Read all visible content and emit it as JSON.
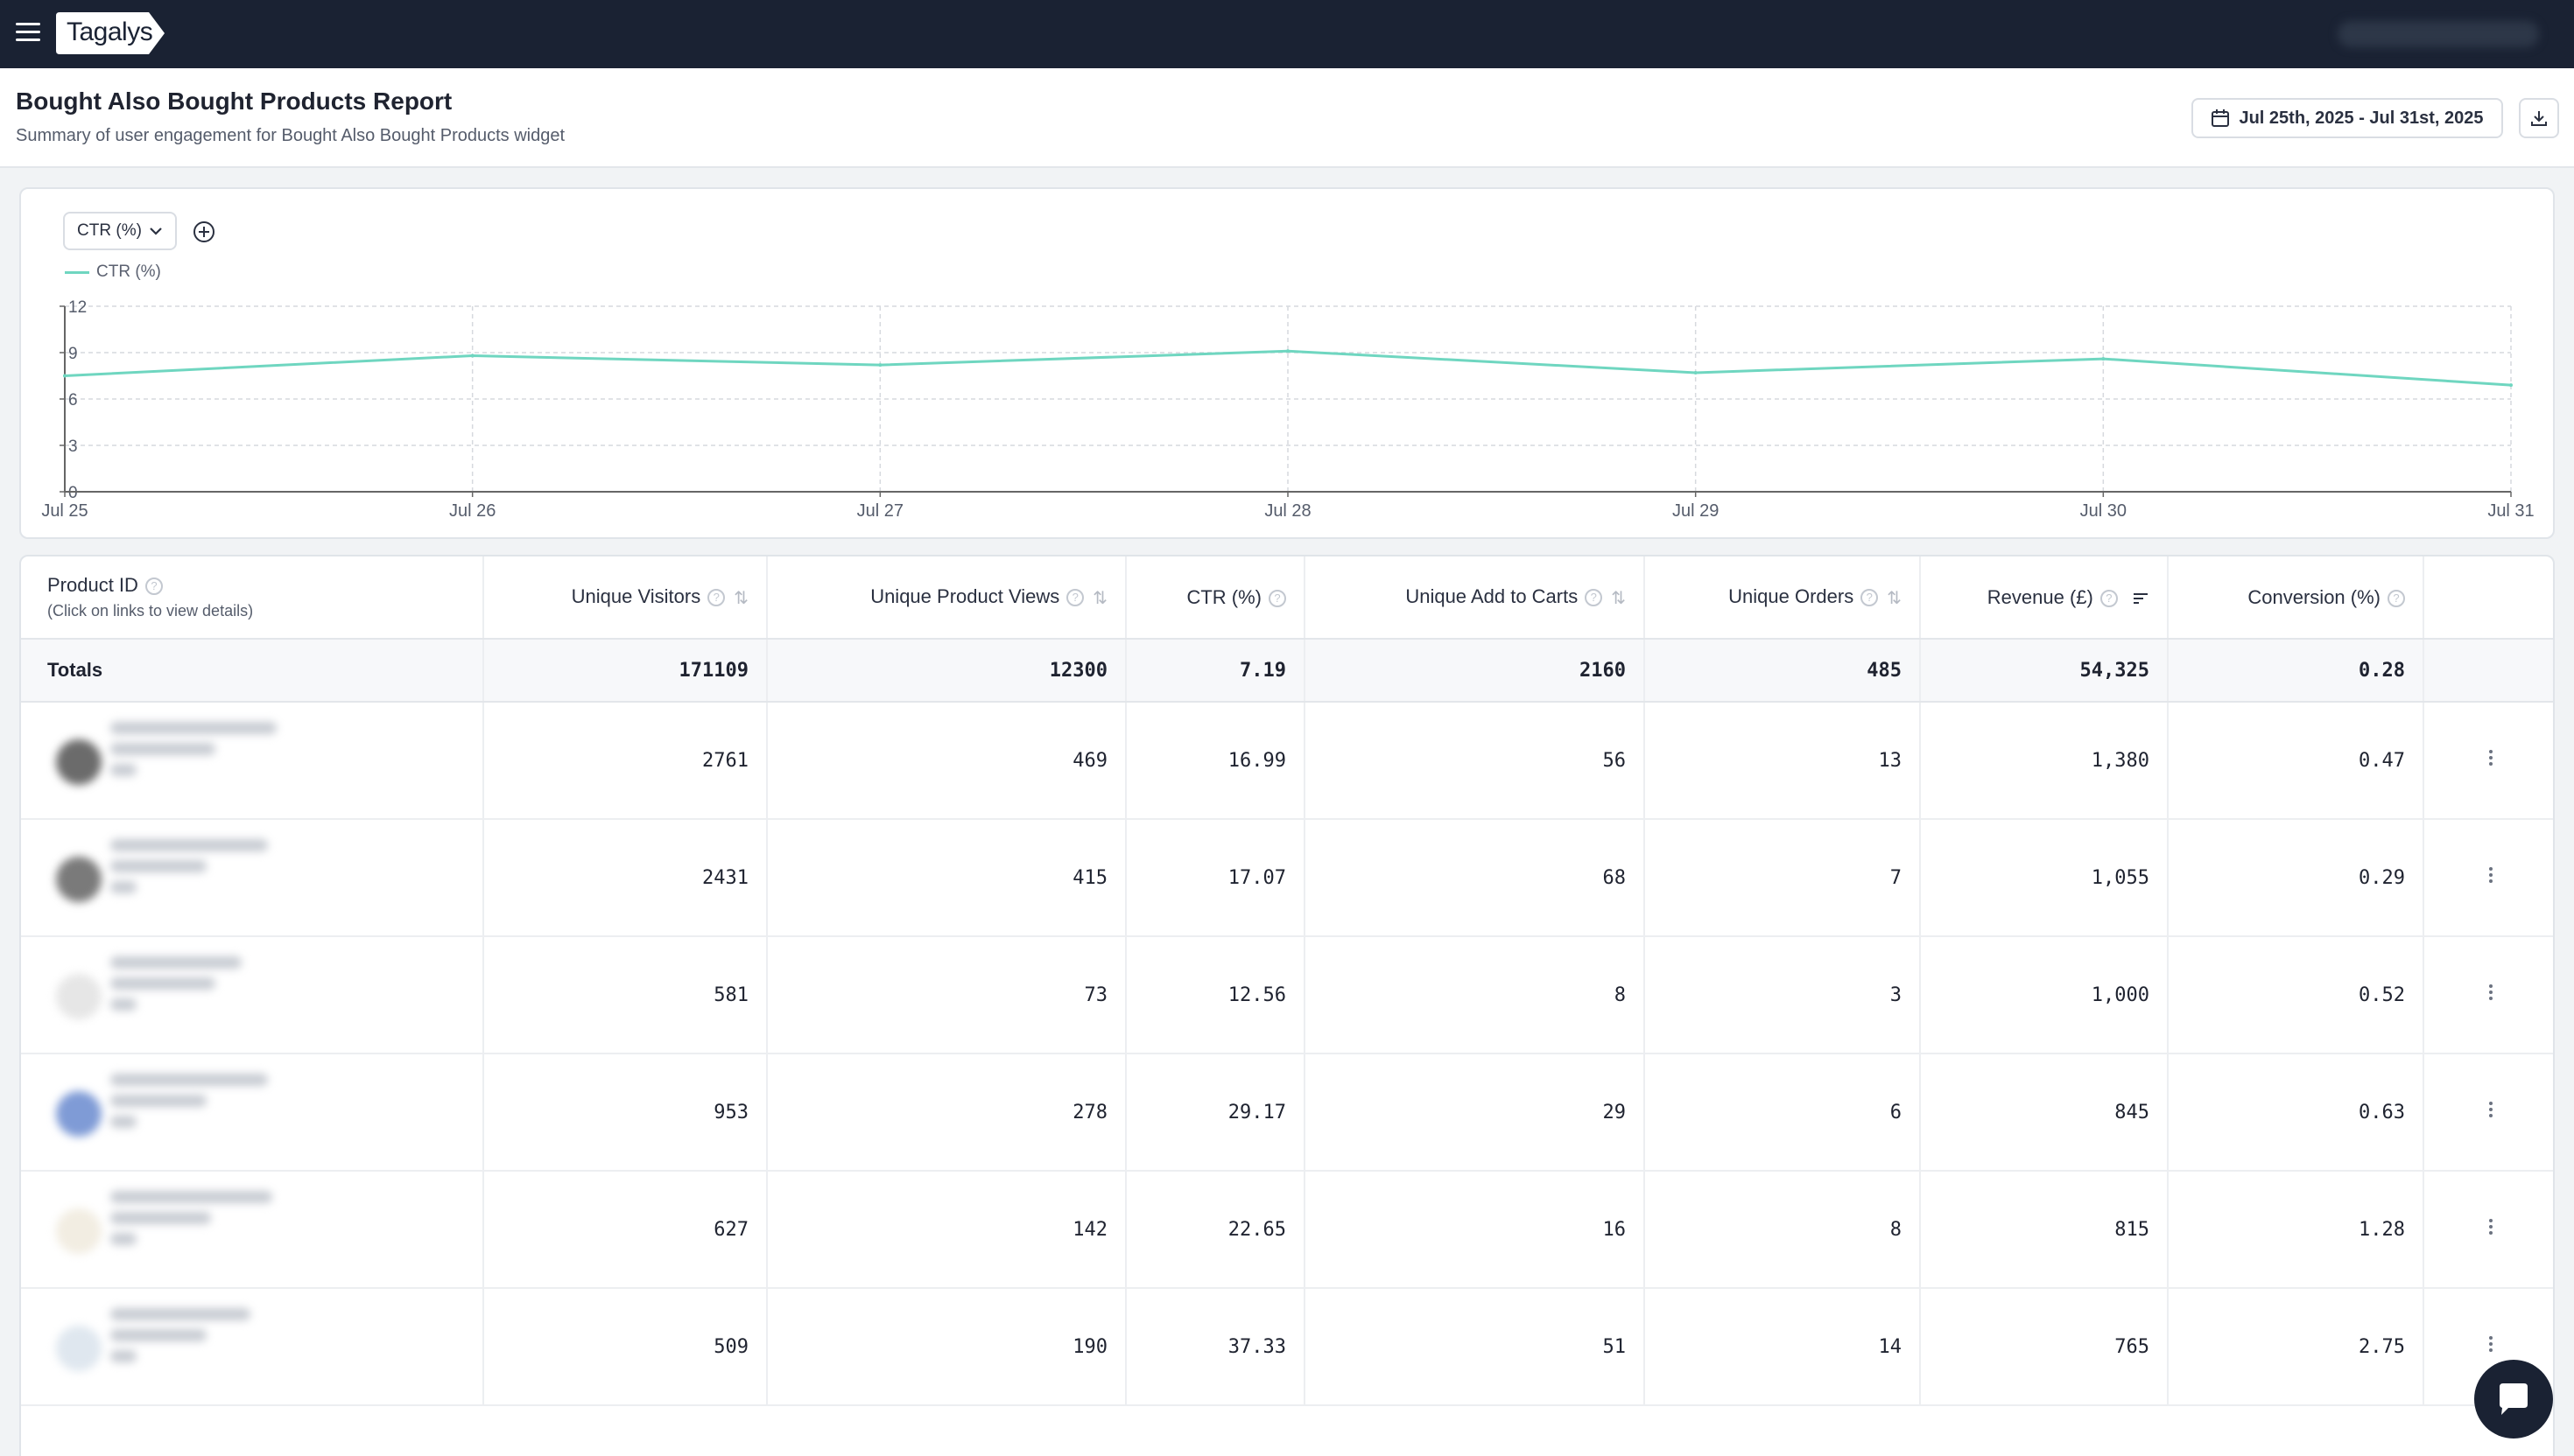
{
  "app": {
    "logo_text": "Tagalys"
  },
  "header": {
    "title": "Bought Also Bought Products Report",
    "subtitle": "Summary of user engagement for Bought Also Bought Products widget",
    "date_range": "Jul 25th, 2025 - Jul 31st, 2025"
  },
  "chart": {
    "metric_select": "CTR (%)",
    "legend_label": "CTR (%)"
  },
  "chart_data": {
    "type": "line",
    "x": [
      "Jul 25",
      "Jul 26",
      "Jul 27",
      "Jul 28",
      "Jul 29",
      "Jul 30",
      "Jul 31"
    ],
    "series": [
      {
        "name": "CTR (%)",
        "values": [
          7.5,
          8.8,
          8.2,
          9.1,
          7.7,
          8.6,
          6.9
        ],
        "color": "#6fd6c0"
      }
    ],
    "yticks": [
      0,
      3,
      6,
      9,
      12
    ],
    "ylim": [
      0,
      12
    ],
    "grid": true,
    "legend": "top-left"
  },
  "table": {
    "columns": [
      {
        "label": "Product ID",
        "sub": "(Click on links to view details)",
        "info": true,
        "sort": false
      },
      {
        "label": "Unique Visitors",
        "info": true,
        "sort": true
      },
      {
        "label": "Unique Product Views",
        "info": true,
        "sort": true
      },
      {
        "label": "CTR (%)",
        "info": true,
        "sort": false
      },
      {
        "label": "Unique Add to Carts",
        "info": true,
        "sort": true
      },
      {
        "label": "Unique Orders",
        "info": true,
        "sort": true
      },
      {
        "label": "Revenue (£)",
        "info": true,
        "sort": "desc"
      },
      {
        "label": "Conversion (%)",
        "info": true,
        "sort": false
      }
    ],
    "totals": {
      "label": "Totals",
      "values": [
        "171109",
        "12300",
        "7.19",
        "2160",
        "485",
        "54,325",
        "0.28"
      ]
    },
    "rows": [
      {
        "values": [
          "2761",
          "469",
          "16.99",
          "56",
          "13",
          "1,380",
          "0.47"
        ],
        "thumb": "#6b6b6b"
      },
      {
        "values": [
          "2431",
          "415",
          "17.07",
          "68",
          "7",
          "1,055",
          "0.29"
        ],
        "thumb": "#7a7a7a"
      },
      {
        "values": [
          "581",
          "73",
          "12.56",
          "8",
          "3",
          "1,000",
          "0.52"
        ],
        "thumb": "#e6e6e6"
      },
      {
        "values": [
          "953",
          "278",
          "29.17",
          "29",
          "6",
          "845",
          "0.63"
        ],
        "thumb": "#7f9bd6"
      },
      {
        "values": [
          "627",
          "142",
          "22.65",
          "16",
          "8",
          "815",
          "1.28"
        ],
        "thumb": "#f2ede2"
      },
      {
        "values": [
          "509",
          "190",
          "37.33",
          "51",
          "14",
          "765",
          "2.75"
        ],
        "thumb": "#dfe7ef"
      }
    ]
  }
}
